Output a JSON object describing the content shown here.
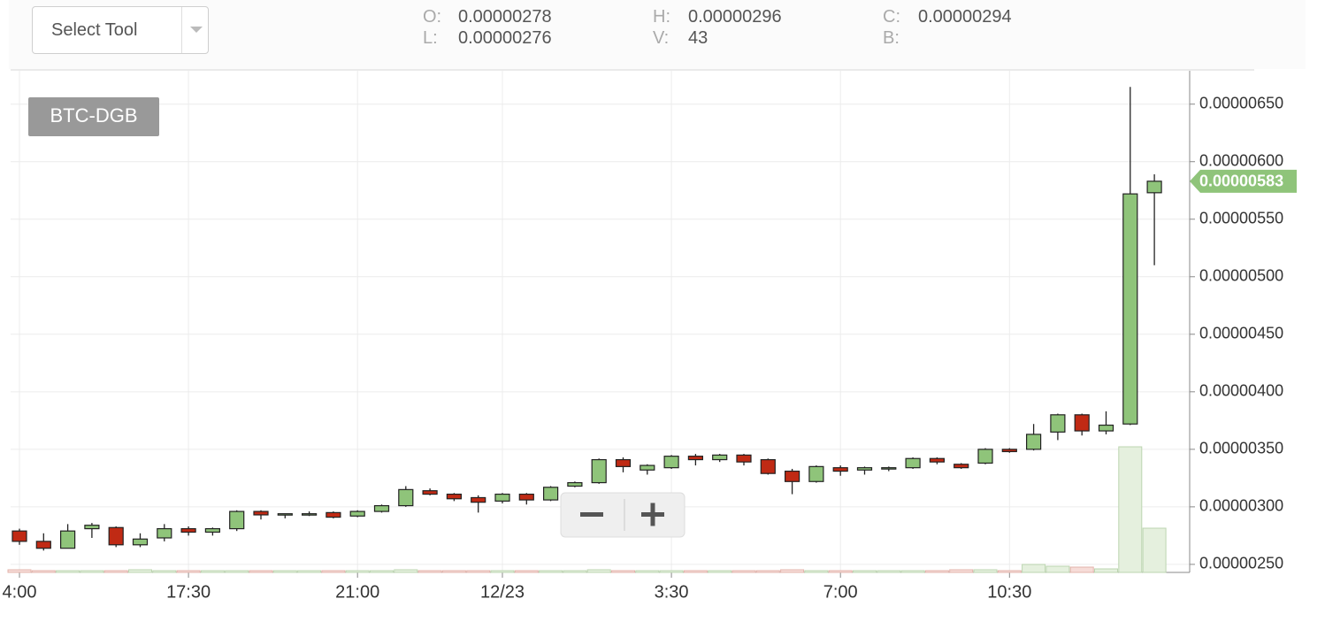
{
  "header": {
    "select_tool": "Select Tool",
    "stats": [
      {
        "key": "O:",
        "value": "0.00000278"
      },
      {
        "key": "L:",
        "value": "0.00000276"
      },
      {
        "key": "H:",
        "value": "0.00000296"
      },
      {
        "key": "V:",
        "value": "43"
      },
      {
        "key": "C:",
        "value": "0.00000294"
      },
      {
        "key": "B:"
      }
    ]
  },
  "chart_data": {
    "type": "candlestick",
    "symbol": "BTC-DGB",
    "categories": [
      "4:00",
      null,
      null,
      null,
      null,
      null,
      null,
      "17:30",
      null,
      null,
      null,
      null,
      null,
      null,
      "21:00",
      null,
      null,
      null,
      null,
      null,
      "12/23",
      null,
      null,
      null,
      null,
      null,
      null,
      "3:30",
      null,
      null,
      null,
      null,
      null,
      null,
      "7:00",
      null,
      null,
      null,
      null,
      null,
      null,
      "10:30",
      null,
      null,
      null,
      null,
      null,
      null
    ],
    "open": [
      2.79e-06,
      2.7e-06,
      2.64e-06,
      2.81e-06,
      2.82e-06,
      2.67e-06,
      2.73e-06,
      2.81e-06,
      2.78e-06,
      2.81e-06,
      2.96e-06,
      2.93e-06,
      2.94e-06,
      2.95e-06,
      2.92e-06,
      2.96e-06,
      3.01e-06,
      3.14e-06,
      3.11e-06,
      3.08e-06,
      3.05e-06,
      3.11e-06,
      3.06e-06,
      3.18e-06,
      3.21e-06,
      3.41e-06,
      3.32e-06,
      3.34e-06,
      3.44e-06,
      3.41e-06,
      3.45e-06,
      3.41e-06,
      3.31e-06,
      3.22e-06,
      3.34e-06,
      3.32e-06,
      3.33e-06,
      3.34e-06,
      3.42e-06,
      3.37e-06,
      3.38e-06,
      3.5e-06,
      3.5e-06,
      3.65e-06,
      3.8e-06,
      3.66e-06,
      3.72e-06,
      5.73e-06
    ],
    "high": [
      2.81e-06,
      2.77e-06,
      2.85e-06,
      2.86e-06,
      2.83e-06,
      2.77e-06,
      2.85e-06,
      2.83e-06,
      2.82e-06,
      2.97e-06,
      2.97e-06,
      2.94e-06,
      2.96e-06,
      2.96e-06,
      2.97e-06,
      3.02e-06,
      3.18e-06,
      3.16e-06,
      3.12e-06,
      3.1e-06,
      3.12e-06,
      3.12e-06,
      3.18e-06,
      3.22e-06,
      3.42e-06,
      3.43e-06,
      3.37e-06,
      3.45e-06,
      3.46e-06,
      3.46e-06,
      3.46e-06,
      3.42e-06,
      3.33e-06,
      3.36e-06,
      3.36e-06,
      3.35e-06,
      3.35e-06,
      3.43e-06,
      3.43e-06,
      3.38e-06,
      3.51e-06,
      3.51e-06,
      3.72e-06,
      3.81e-06,
      3.81e-06,
      3.83e-06,
      6.65e-06,
      5.89e-06
    ],
    "low": [
      2.67e-06,
      2.62e-06,
      2.64e-06,
      2.73e-06,
      2.65e-06,
      2.65e-06,
      2.7e-06,
      2.75e-06,
      2.75e-06,
      2.79e-06,
      2.89e-06,
      2.9e-06,
      2.92e-06,
      2.9e-06,
      2.91e-06,
      2.95e-06,
      3e-06,
      3.1e-06,
      3.05e-06,
      2.95e-06,
      3.03e-06,
      3.02e-06,
      3.05e-06,
      3.17e-06,
      3.2e-06,
      3.3e-06,
      3.28e-06,
      3.33e-06,
      3.36e-06,
      3.39e-06,
      3.36e-06,
      3.28e-06,
      3.11e-06,
      3.21e-06,
      3.27e-06,
      3.28e-06,
      3.31e-06,
      3.33e-06,
      3.37e-06,
      3.33e-06,
      3.37e-06,
      3.47e-06,
      3.49e-06,
      3.58e-06,
      3.62e-06,
      3.63e-06,
      3.71e-06,
      5.1e-06
    ],
    "close": [
      2.7e-06,
      2.64e-06,
      2.79e-06,
      2.84e-06,
      2.67e-06,
      2.72e-06,
      2.81e-06,
      2.78e-06,
      2.81e-06,
      2.96e-06,
      2.93e-06,
      2.94e-06,
      2.94e-06,
      2.91e-06,
      2.96e-06,
      3.01e-06,
      3.15e-06,
      3.11e-06,
      3.07e-06,
      3.04e-06,
      3.11e-06,
      3.06e-06,
      3.17e-06,
      3.21e-06,
      3.41e-06,
      3.35e-06,
      3.36e-06,
      3.44e-06,
      3.41e-06,
      3.45e-06,
      3.39e-06,
      3.29e-06,
      3.22e-06,
      3.35e-06,
      3.31e-06,
      3.34e-06,
      3.34e-06,
      3.42e-06,
      3.39e-06,
      3.34e-06,
      3.5e-06,
      3.48e-06,
      3.63e-06,
      3.8e-06,
      3.66e-06,
      3.71e-06,
      5.72e-06,
      5.83e-06
    ],
    "volume": [
      3,
      2,
      2,
      2,
      2,
      3,
      2,
      2,
      2,
      2,
      2,
      2,
      2,
      2,
      2,
      2,
      3,
      2,
      2,
      2,
      2,
      2,
      2,
      2,
      3,
      2,
      2,
      2,
      2,
      2,
      2,
      2,
      3,
      2,
      2,
      2,
      2,
      2,
      2,
      3,
      3,
      2,
      9,
      7,
      6,
      4,
      142,
      50
    ],
    "up_color": "#8fc47a",
    "down_color": "#c02a14",
    "current_price": {
      "value": 5.83e-06,
      "label": "0.00000583"
    },
    "ylim": [
      2.43e-06,
      6.79e-06
    ],
    "yticks": [
      {
        "value": 2.5e-06,
        "label": "0.00000250"
      },
      {
        "value": 3e-06,
        "label": "0.00000300"
      },
      {
        "value": 3.5e-06,
        "label": "0.00000350"
      },
      {
        "value": 4e-06,
        "label": "0.00000400"
      },
      {
        "value": 4.5e-06,
        "label": "0.00000450"
      },
      {
        "value": 5e-06,
        "label": "0.00000500"
      },
      {
        "value": 5.5e-06,
        "label": "0.00000550"
      },
      {
        "value": 6e-06,
        "label": "0.00000600"
      },
      {
        "value": 6.5e-06,
        "label": "0.00000650"
      }
    ],
    "grid": true
  }
}
